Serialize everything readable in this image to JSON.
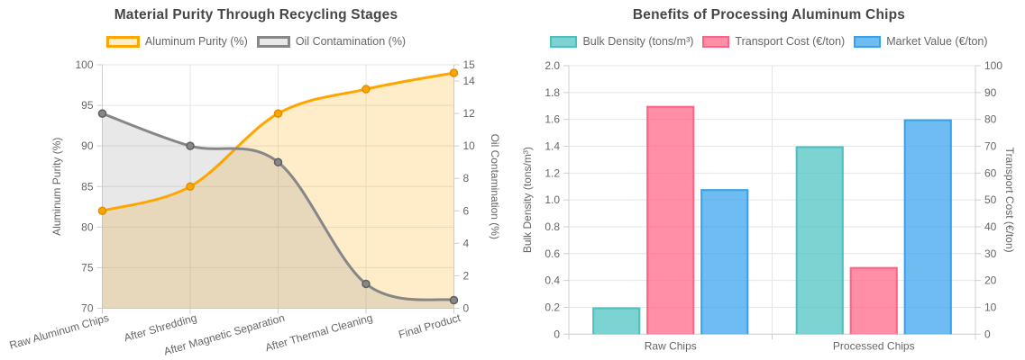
{
  "chart_data": [
    {
      "type": "line",
      "title": "Material Purity Through Recycling Stages",
      "categories": [
        "Raw Aluminum Chips",
        "After Shredding",
        "After Magnetic Separation",
        "After Thermal Cleaning",
        "Final Product"
      ],
      "series": [
        {
          "name": "Aluminum Purity (%)",
          "axis": "left",
          "color": "#FFA500",
          "point_stroke": "#e08e00",
          "fill": "rgba(255,165,0,0.21)",
          "values": [
            82,
            85,
            94,
            97,
            99
          ]
        },
        {
          "name": "Oil Contamination (%)",
          "axis": "right",
          "color": "#878787",
          "point_stroke": "#5f5f5f",
          "fill": "rgba(128,128,128,0.18)",
          "values": [
            12,
            10,
            9,
            1.5,
            0.5
          ]
        }
      ],
      "left_axis": {
        "label": "Aluminum Purity (%)",
        "min": 70,
        "max": 100,
        "ticks": [
          "70",
          "75",
          "80",
          "85",
          "90",
          "95",
          "100"
        ]
      },
      "right_axis": {
        "label": "Oil Contamination (%)",
        "min": 0,
        "max": 15,
        "ticks": [
          "0",
          "2",
          "4",
          "6",
          "8",
          "10",
          "12",
          "14",
          "15"
        ]
      },
      "legend_position": "top",
      "grid": true
    },
    {
      "type": "bar",
      "title": "Benefits of Processing Aluminum Chips",
      "categories": [
        "Raw Chips",
        "Processed Chips"
      ],
      "series": [
        {
          "name": "Bulk Density (tons/m³)",
          "axis": "left",
          "color": "#4BC0C0",
          "fill": "rgba(75,192,192,0.72)",
          "values": [
            0.2,
            1.4
          ]
        },
        {
          "name": "Transport Cost (€/ton)",
          "axis": "right",
          "color": "#FF6384",
          "fill": "rgba(255,99,132,0.72)",
          "values": [
            85,
            25
          ]
        },
        {
          "name": "Market Value (€/ton)",
          "axis": "right",
          "color": "#36A2EB",
          "fill": "rgba(54,162,235,0.72)",
          "values": [
            54,
            80
          ]
        }
      ],
      "left_axis": {
        "label": "Bulk Density (tons/m³)",
        "min": 0,
        "max": 2,
        "ticks": [
          "0",
          "0.2",
          "0.4",
          "0.6",
          "0.8",
          "1.0",
          "1.2",
          "1.4",
          "1.6",
          "1.8",
          "2.0"
        ]
      },
      "right_axis": {
        "label": "Transport Cost (€/ton)",
        "min": 0,
        "max": 100,
        "ticks": [
          "0",
          "10",
          "20",
          "30",
          "40",
          "50",
          "60",
          "70",
          "80",
          "90",
          "100"
        ]
      },
      "legend_position": "top",
      "grid": true
    }
  ]
}
